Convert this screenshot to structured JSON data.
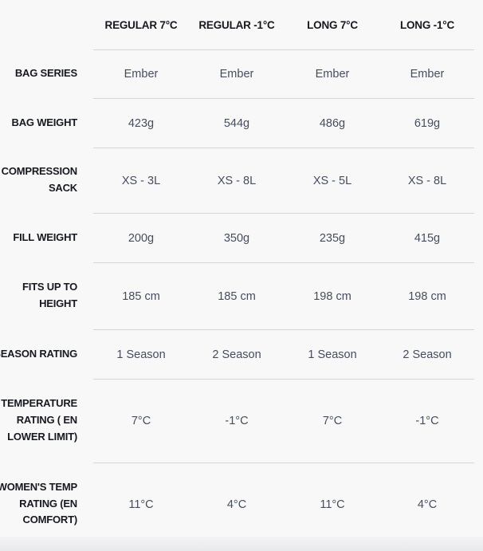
{
  "table": {
    "columns": [
      "REGULAR 7°C",
      "REGULAR -1°C",
      "LONG 7°C",
      "LONG -1°C"
    ],
    "rows": [
      {
        "label": "BAG SERIES",
        "values": [
          "Ember",
          "Ember",
          "Ember",
          "Ember"
        ]
      },
      {
        "label": "BAG WEIGHT",
        "values": [
          "423g",
          "544g",
          "486g",
          "619g"
        ]
      },
      {
        "label": "COMPRESSION\nSACK",
        "values": [
          "XS - 3L",
          "XS - 8L",
          "XS - 5L",
          "XS - 8L"
        ]
      },
      {
        "label": "FILL WEIGHT",
        "values": [
          "200g",
          "350g",
          "235g",
          "415g"
        ]
      },
      {
        "label": "FITS UP TO\nHEIGHT",
        "values": [
          "185 cm",
          "185 cm",
          "198 cm",
          "198 cm"
        ]
      },
      {
        "label": "SEASON RATING",
        "values": [
          "1 Season",
          "2 Season",
          "1 Season",
          "2 Season"
        ]
      },
      {
        "label": "TEMPERATURE\nRATING ( EN\nLOWER LIMIT)",
        "values": [
          "7°C",
          "-1°C",
          "7°C",
          "-1°C"
        ]
      },
      {
        "label": "WOMEN'S TEMP\nRATING (EN\nCOMFORT)",
        "values": [
          "11°C",
          "4°C",
          "11°C",
          "4°C"
        ]
      }
    ]
  },
  "colors": {
    "background": "#f8f8f9",
    "label_text": "#16191f",
    "value_text": "#454e5e",
    "divider": "#d5d6d9",
    "bottom_strip": "#e9eaec"
  }
}
